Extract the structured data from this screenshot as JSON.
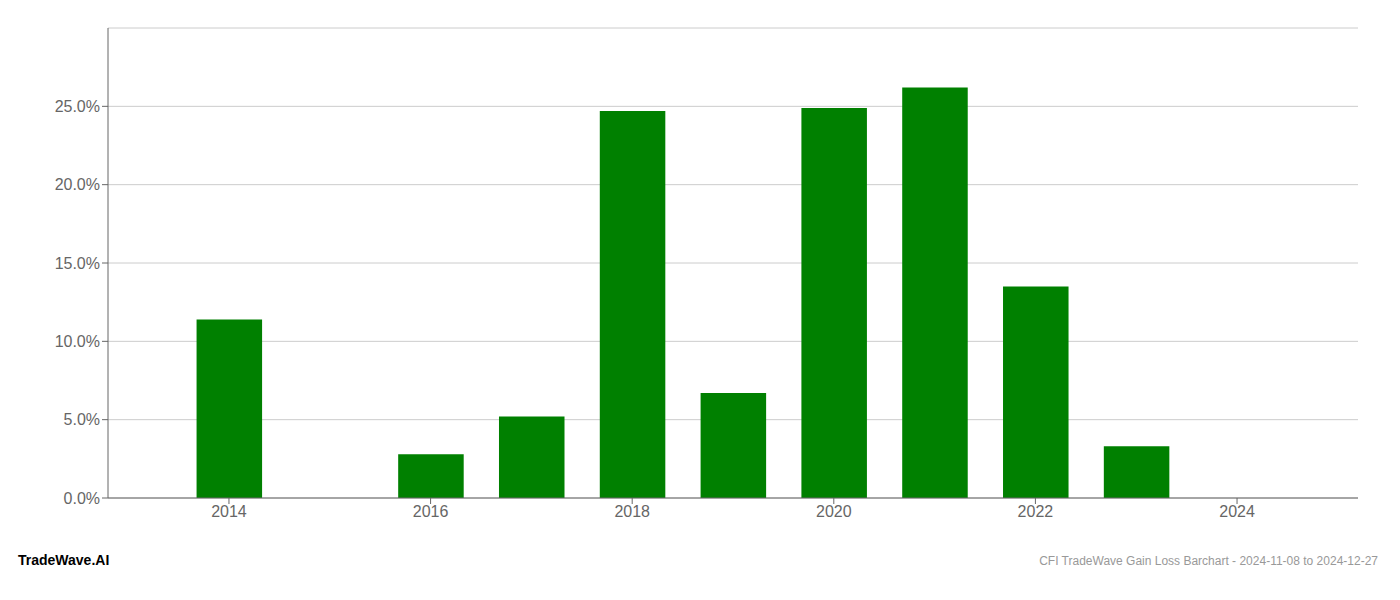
{
  "chart_data": {
    "type": "bar",
    "x": [
      2014,
      2015,
      2016,
      2017,
      2018,
      2019,
      2020,
      2021,
      2022,
      2023,
      2024
    ],
    "values": [
      0.114,
      0.0,
      0.028,
      0.052,
      0.247,
      0.067,
      0.249,
      0.262,
      0.135,
      0.033,
      0.0
    ],
    "color": "#008000",
    "xlim": [
      2012.8,
      2025.2
    ],
    "xticks": [
      2014,
      2016,
      2018,
      2020,
      2022,
      2024
    ],
    "ylim": [
      0,
      0.3
    ],
    "yticks": [
      {
        "value": 0.0,
        "label": "0.0%"
      },
      {
        "value": 0.05,
        "label": "5.0%"
      },
      {
        "value": 0.1,
        "label": "10.0%"
      },
      {
        "value": 0.15,
        "label": "15.0%"
      },
      {
        "value": 0.2,
        "label": "20.0%"
      },
      {
        "value": 0.25,
        "label": "25.0%"
      }
    ],
    "grid": true,
    "annotations": [
      "TradeWave.AI",
      "CFI TradeWave Gain Loss Barchart - 2024-11-08 to 2024-12-27"
    ]
  }
}
